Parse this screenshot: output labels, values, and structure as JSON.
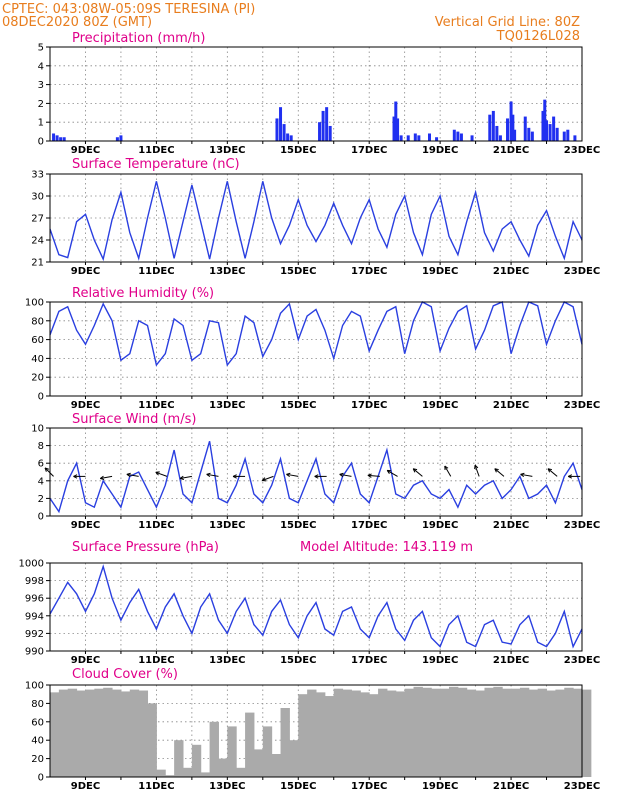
{
  "header": {
    "line1_left": "CPTEC:   043:08W-05:09S   TERESINA (PI)",
    "line2_left": "08DEC2020 80Z (GMT)",
    "line2_right": "Vertical Grid Line: 80Z",
    "line3_right": "TQ0126L028"
  },
  "x_ticks": [
    "9DEC",
    "11DEC",
    "13DEC",
    "15DEC",
    "17DEC",
    "19DEC",
    "21DEC",
    "23DEC"
  ],
  "colors": {
    "header": "#e87d1e",
    "title": "#e0008a",
    "line": "#2a3fe0",
    "cloud": "#aaaaaa",
    "axis": "#000000"
  },
  "chart_data": [
    {
      "type": "bar",
      "title": "Precipitation (mm/h)",
      "ylim": [
        0,
        5
      ],
      "yticks": [
        "0",
        "1",
        "2",
        "3",
        "4",
        "5"
      ],
      "x_days": [
        8.0,
        23.0
      ],
      "series": [
        {
          "values": [
            [
              8.1,
              0.4
            ],
            [
              8.2,
              0.3
            ],
            [
              8.3,
              0.2
            ],
            [
              8.4,
              0.2
            ],
            [
              9.9,
              0.2
            ],
            [
              10.0,
              0.3
            ],
            [
              14.4,
              1.2
            ],
            [
              14.5,
              1.8
            ],
            [
              14.6,
              0.9
            ],
            [
              14.7,
              0.4
            ],
            [
              14.8,
              0.3
            ],
            [
              15.6,
              1.0
            ],
            [
              15.7,
              1.6
            ],
            [
              15.8,
              1.8
            ],
            [
              15.9,
              0.8
            ],
            [
              17.7,
              1.3
            ],
            [
              17.75,
              2.1
            ],
            [
              17.8,
              1.2
            ],
            [
              17.9,
              0.3
            ],
            [
              18.1,
              0.3
            ],
            [
              18.3,
              0.4
            ],
            [
              18.4,
              0.3
            ],
            [
              18.7,
              0.4
            ],
            [
              18.9,
              0.2
            ],
            [
              19.4,
              0.6
            ],
            [
              19.5,
              0.5
            ],
            [
              19.6,
              0.4
            ],
            [
              19.9,
              0.3
            ],
            [
              20.4,
              1.4
            ],
            [
              20.5,
              1.6
            ],
            [
              20.6,
              0.8
            ],
            [
              20.7,
              0.3
            ],
            [
              20.9,
              1.2
            ],
            [
              21.0,
              2.1
            ],
            [
              21.05,
              1.4
            ],
            [
              21.1,
              0.6
            ],
            [
              21.4,
              1.3
            ],
            [
              21.5,
              0.7
            ],
            [
              21.6,
              0.5
            ],
            [
              21.9,
              1.6
            ],
            [
              21.95,
              2.2
            ],
            [
              22.0,
              1.1
            ],
            [
              22.1,
              0.9
            ],
            [
              22.2,
              1.3
            ],
            [
              22.3,
              0.7
            ],
            [
              22.5,
              0.5
            ],
            [
              22.6,
              0.6
            ],
            [
              22.8,
              0.3
            ]
          ]
        }
      ]
    },
    {
      "type": "line",
      "title": "Surface Temperature (nC)",
      "ylim": [
        21,
        33
      ],
      "yticks": [
        "21",
        "24",
        "27",
        "30",
        "33"
      ],
      "series": [
        {
          "x": [
            8.0,
            8.25,
            8.5,
            8.75,
            9.0,
            9.25,
            9.5,
            9.75,
            10.0,
            10.25,
            10.5,
            10.75,
            11.0,
            11.25,
            11.5,
            11.75,
            12.0,
            12.25,
            12.5,
            12.75,
            13.0,
            13.25,
            13.5,
            13.75,
            14.0,
            14.25,
            14.5,
            14.75,
            15.0,
            15.25,
            15.5,
            15.75,
            16.0,
            16.25,
            16.5,
            16.75,
            17.0,
            17.25,
            17.5,
            17.75,
            18.0,
            18.25,
            18.5,
            18.75,
            19.0,
            19.25,
            19.5,
            19.75,
            20.0,
            20.25,
            20.5,
            20.75,
            21.0,
            21.25,
            21.5,
            21.75,
            22.0,
            22.25,
            22.5,
            22.75,
            23.0
          ],
          "values": [
            25.5,
            22.0,
            21.6,
            26.5,
            27.5,
            24.0,
            21.4,
            26.8,
            30.5,
            25.0,
            21.5,
            27.0,
            32.0,
            27.0,
            21.5,
            26.5,
            31.5,
            26.5,
            21.4,
            27.0,
            32.0,
            26.5,
            21.5,
            26.5,
            32.0,
            27.0,
            23.5,
            26.0,
            29.5,
            26.0,
            23.8,
            26.0,
            29.0,
            26.0,
            23.5,
            27.0,
            29.5,
            25.5,
            23.0,
            27.5,
            30.0,
            25.0,
            22.0,
            27.5,
            30.0,
            24.5,
            22.0,
            26.5,
            30.5,
            25.0,
            22.5,
            25.5,
            26.5,
            24.0,
            21.8,
            26.0,
            28.0,
            24.5,
            21.5,
            26.5,
            24.0
          ]
        }
      ]
    },
    {
      "type": "line",
      "title": "Relative Humidity (%)",
      "ylim": [
        0,
        100
      ],
      "yticks": [
        "0",
        "20",
        "40",
        "60",
        "80",
        "100"
      ],
      "series": [
        {
          "x": [
            8.0,
            8.25,
            8.5,
            8.75,
            9.0,
            9.25,
            9.5,
            9.75,
            10.0,
            10.25,
            10.5,
            10.75,
            11.0,
            11.25,
            11.5,
            11.75,
            12.0,
            12.25,
            12.5,
            12.75,
            13.0,
            13.25,
            13.5,
            13.75,
            14.0,
            14.25,
            14.5,
            14.75,
            15.0,
            15.25,
            15.5,
            15.75,
            16.0,
            16.25,
            16.5,
            16.75,
            17.0,
            17.25,
            17.5,
            17.75,
            18.0,
            18.25,
            18.5,
            18.75,
            19.0,
            19.25,
            19.5,
            19.75,
            20.0,
            20.25,
            20.5,
            20.75,
            21.0,
            21.25,
            21.5,
            21.75,
            22.0,
            22.25,
            22.5,
            22.75,
            23.0
          ],
          "values": [
            65,
            90,
            95,
            70,
            55,
            75,
            98,
            80,
            38,
            45,
            80,
            75,
            33,
            45,
            82,
            75,
            38,
            45,
            80,
            78,
            33,
            45,
            85,
            78,
            42,
            60,
            88,
            98,
            60,
            85,
            92,
            70,
            40,
            75,
            90,
            85,
            48,
            70,
            90,
            95,
            45,
            80,
            100,
            95,
            48,
            72,
            90,
            96,
            50,
            70,
            96,
            100,
            45,
            75,
            100,
            96,
            55,
            80,
            100,
            95,
            55
          ]
        }
      ]
    },
    {
      "type": "line",
      "title": "Surface Wind (m/s)",
      "ylim": [
        0,
        10
      ],
      "yticks": [
        "0",
        "2",
        "4",
        "6",
        "8",
        "10"
      ],
      "series": [
        {
          "x": [
            8.0,
            8.25,
            8.5,
            8.75,
            9.0,
            9.25,
            9.5,
            9.75,
            10.0,
            10.25,
            10.5,
            10.75,
            11.0,
            11.25,
            11.5,
            11.75,
            12.0,
            12.25,
            12.5,
            12.75,
            13.0,
            13.25,
            13.5,
            13.75,
            14.0,
            14.25,
            14.5,
            14.75,
            15.0,
            15.25,
            15.5,
            15.75,
            16.0,
            16.25,
            16.5,
            16.75,
            17.0,
            17.25,
            17.5,
            17.75,
            18.0,
            18.25,
            18.5,
            18.75,
            19.0,
            19.25,
            19.5,
            19.75,
            20.0,
            20.25,
            20.5,
            20.75,
            21.0,
            21.25,
            21.5,
            21.75,
            22.0,
            22.25,
            22.5,
            22.75,
            23.0
          ],
          "values": [
            2.0,
            0.5,
            4.0,
            6.0,
            1.5,
            1.0,
            4.0,
            2.5,
            1.0,
            4.5,
            5.0,
            3.0,
            1.0,
            3.5,
            7.5,
            2.5,
            1.5,
            5.0,
            8.5,
            2.0,
            1.5,
            3.5,
            6.5,
            2.5,
            1.5,
            3.5,
            6.5,
            2.0,
            1.5,
            4.0,
            6.5,
            2.5,
            1.5,
            4.5,
            6.0,
            2.5,
            1.5,
            4.5,
            7.5,
            2.5,
            2.0,
            3.5,
            4.0,
            2.5,
            2.0,
            3.0,
            1.0,
            3.5,
            2.5,
            3.5,
            4.0,
            2.0,
            3.0,
            4.5,
            2.0,
            2.5,
            3.5,
            1.5,
            4.5,
            6.0,
            3.0
          ]
        }
      ],
      "arrows": [
        [
          8.1,
          135
        ],
        [
          9.0,
          180
        ],
        [
          9.75,
          190
        ],
        [
          10.5,
          170
        ],
        [
          11.3,
          160
        ],
        [
          12.0,
          190
        ],
        [
          12.75,
          170
        ],
        [
          13.5,
          180
        ],
        [
          14.3,
          200
        ],
        [
          15.0,
          170
        ],
        [
          15.8,
          180
        ],
        [
          16.5,
          170
        ],
        [
          17.3,
          175
        ],
        [
          17.8,
          150
        ],
        [
          18.5,
          140
        ],
        [
          19.3,
          120
        ],
        [
          20.1,
          110
        ],
        [
          20.8,
          140
        ],
        [
          21.6,
          170
        ],
        [
          22.3,
          140
        ],
        [
          22.95,
          180
        ]
      ]
    },
    {
      "type": "line",
      "title": "Surface Pressure (hPa)",
      "annotation": "Model Altitude: 143.119 m",
      "ylim": [
        990,
        1000
      ],
      "yticks": [
        "990",
        "992",
        "994",
        "996",
        "998",
        "1000"
      ],
      "series": [
        {
          "x": [
            8.0,
            8.25,
            8.5,
            8.75,
            9.0,
            9.25,
            9.5,
            9.75,
            10.0,
            10.25,
            10.5,
            10.75,
            11.0,
            11.25,
            11.5,
            11.75,
            12.0,
            12.25,
            12.5,
            12.75,
            13.0,
            13.25,
            13.5,
            13.75,
            14.0,
            14.25,
            14.5,
            14.75,
            15.0,
            15.25,
            15.5,
            15.75,
            16.0,
            16.25,
            16.5,
            16.75,
            17.0,
            17.25,
            17.5,
            17.75,
            18.0,
            18.25,
            18.5,
            18.75,
            19.0,
            19.25,
            19.5,
            19.75,
            20.0,
            20.25,
            20.5,
            20.75,
            21.0,
            21.25,
            21.5,
            21.75,
            22.0,
            22.25,
            22.5,
            22.75,
            23.0
          ],
          "values": [
            994.2,
            996.0,
            997.8,
            996.5,
            994.5,
            996.5,
            999.6,
            996.0,
            993.5,
            995.5,
            997.0,
            994.5,
            992.5,
            995.0,
            996.5,
            994.0,
            992.0,
            995.0,
            996.5,
            993.5,
            992.0,
            994.5,
            996.0,
            993.0,
            991.8,
            994.5,
            995.8,
            993.0,
            991.5,
            994.0,
            995.5,
            992.5,
            991.8,
            994.5,
            995.0,
            992.5,
            991.5,
            994.0,
            995.5,
            992.5,
            991.2,
            993.5,
            994.5,
            991.5,
            990.5,
            993.0,
            994.0,
            991.0,
            990.5,
            993.0,
            993.5,
            991.0,
            990.8,
            993.0,
            994.0,
            991.0,
            990.5,
            992.0,
            994.5,
            990.5,
            992.5
          ]
        }
      ]
    },
    {
      "type": "area",
      "title": "Cloud Cover (%)",
      "ylim": [
        0,
        100
      ],
      "yticks": [
        "0",
        "20",
        "40",
        "60",
        "80",
        "100"
      ],
      "series": [
        {
          "x": [
            8.0,
            8.25,
            8.5,
            8.75,
            9.0,
            9.25,
            9.5,
            9.75,
            10.0,
            10.25,
            10.5,
            10.75,
            11.0,
            11.25,
            11.5,
            11.75,
            12.0,
            12.25,
            12.5,
            12.75,
            13.0,
            13.25,
            13.5,
            13.75,
            14.0,
            14.25,
            14.5,
            14.75,
            15.0,
            15.25,
            15.5,
            15.75,
            16.0,
            16.25,
            16.5,
            16.75,
            17.0,
            17.25,
            17.5,
            17.75,
            18.0,
            18.25,
            18.5,
            18.75,
            19.0,
            19.25,
            19.5,
            19.75,
            20.0,
            20.25,
            20.5,
            20.75,
            21.0,
            21.25,
            21.5,
            21.75,
            22.0,
            22.25,
            22.5,
            22.75,
            23.0
          ],
          "values": [
            92,
            95,
            96,
            94,
            95,
            96,
            97,
            95,
            93,
            95,
            94,
            80,
            8,
            2,
            40,
            10,
            35,
            5,
            60,
            20,
            55,
            10,
            70,
            30,
            55,
            25,
            75,
            40,
            90,
            95,
            92,
            88,
            96,
            95,
            94,
            92,
            90,
            96,
            94,
            93,
            96,
            98,
            97,
            96,
            96,
            98,
            97,
            95,
            94,
            97,
            98,
            96,
            96,
            97,
            95,
            96,
            94,
            95,
            97,
            96,
            95
          ]
        }
      ]
    }
  ]
}
